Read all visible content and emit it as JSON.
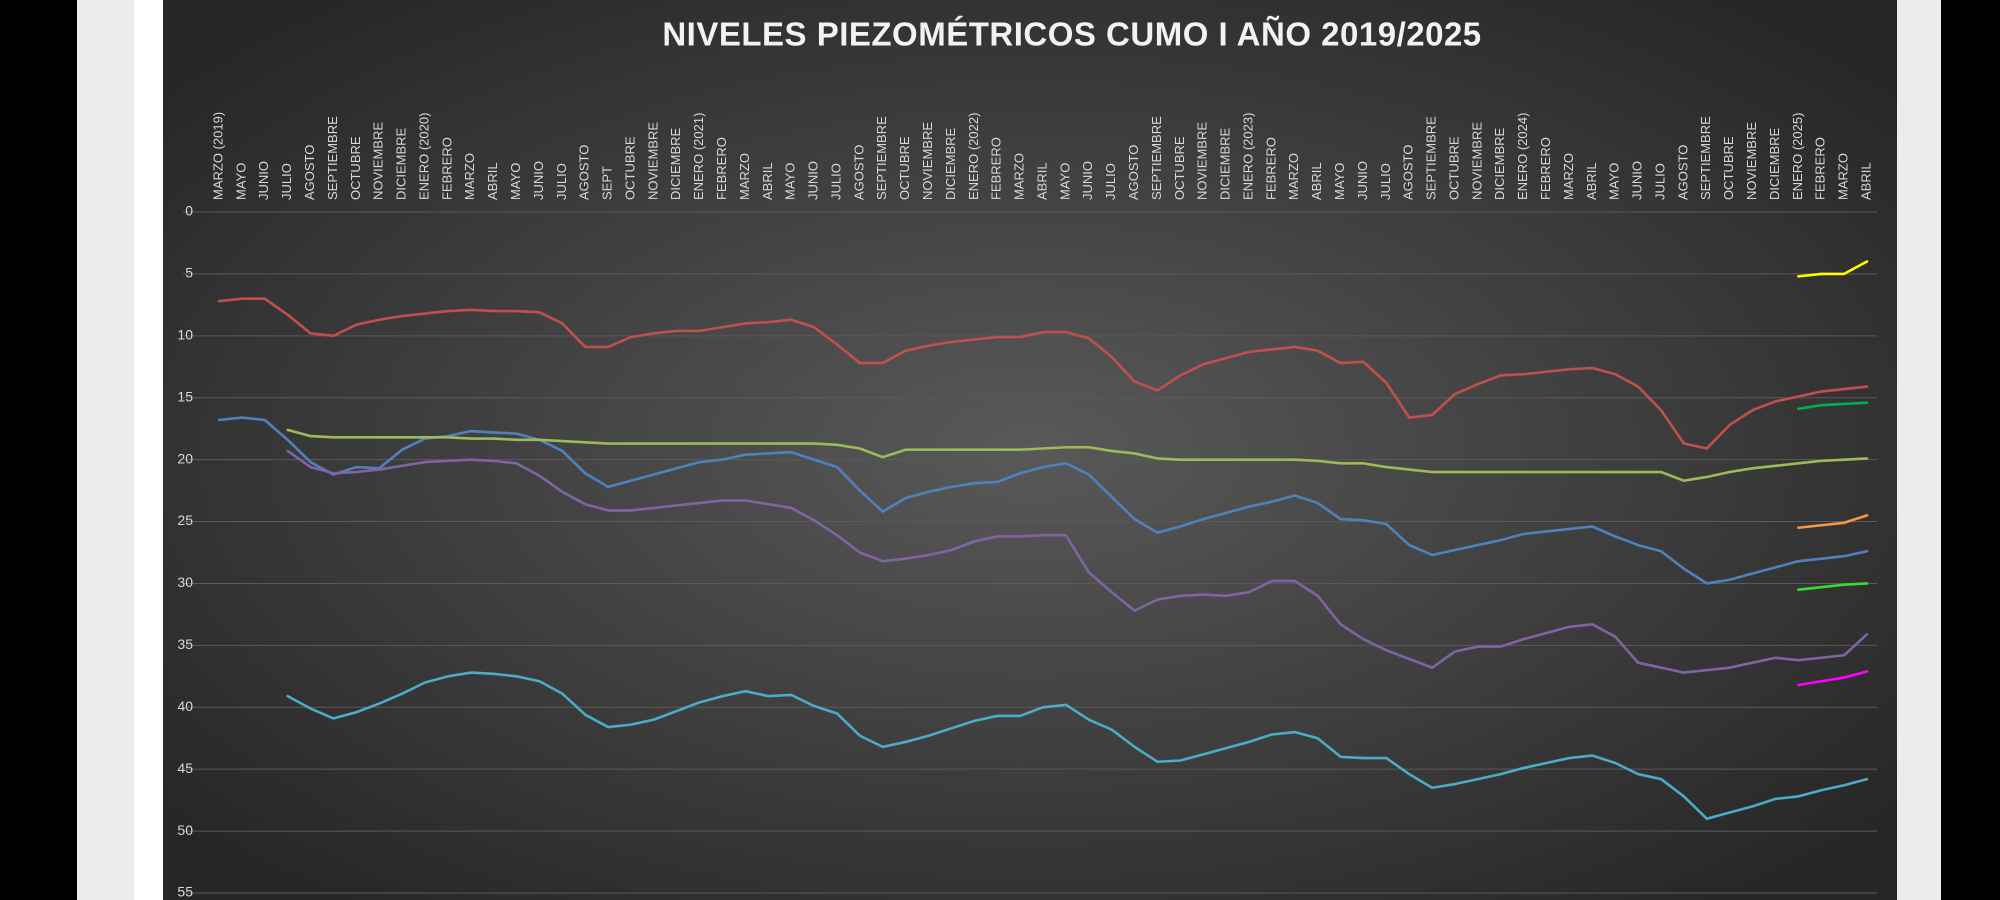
{
  "chart_data": {
    "type": "line",
    "title": "NIVELES PIEZOMÉTRICOS CUMO I AÑO 2019/2025",
    "categories": [
      "MARZO (2019)",
      "MAYO",
      "JUNIO",
      "JULIO",
      "AGOSTO",
      "SEPTIEMBRE",
      "OCTUBRE",
      "NOVIEMBRE",
      "DICIEMBRE",
      "ENERO (2020)",
      "FEBRERO",
      "MARZO",
      "ABRIL",
      "MAYO",
      "JUNIO",
      "JULIO",
      "AGOSTO",
      "SEPT",
      "OCTUBRE",
      "NOVIEMBRE",
      "DICIEMBRE",
      "ENERO (2021)",
      "FEBRERO",
      "MARZO",
      "ABRIL",
      "MAYO",
      "JUNIO",
      "JULIO",
      "AGOSTO",
      "SEPTIEMBRE",
      "OCTUBRE",
      "NOVIEMBRE",
      "DICIEMBRE",
      "ENERO (2022)",
      "FEBRERO",
      "MARZO",
      "ABRIL",
      "MAYO",
      "JUNIO",
      "JULIO",
      "AGOSTO",
      "SEPTIEMBRE",
      "OCTUBRE",
      "NOVIEMBRE",
      "DICIEMBRE",
      "ENERO (2023)",
      "FEBRERO",
      "MARZO",
      "ABRIL",
      "MAYO",
      "JUNIO",
      "JULIO",
      "AGOSTO",
      "SEPTIEMBRE",
      "OCTUBRE",
      "NOVIEMBRE",
      "DICIEMBRE",
      "ENERO (2024)",
      "FEBRERO",
      "MARZO",
      "ABRIL",
      "MAYO",
      "JUNIO",
      "JULIO",
      "AGOSTO",
      "SEPTIEMBRE",
      "OCTUBRE",
      "NOVIEMBRE",
      "DICIEMBRE",
      "ENERO (2025)",
      "FEBRERO",
      "MARZO",
      "ABRIL"
    ],
    "ylim": [
      0,
      55
    ],
    "yticks": [
      0,
      5,
      10,
      15,
      20,
      25,
      30,
      35,
      40,
      45,
      50,
      55
    ],
    "y_inverted": true,
    "grid": true,
    "series": [
      {
        "color": "#c0504d",
        "values": [
          7.2,
          7.0,
          7.0,
          8.3,
          9.8,
          10.0,
          9.1,
          8.7,
          8.4,
          8.2,
          8.0,
          7.9,
          8.0,
          8.0,
          8.1,
          9.0,
          10.9,
          10.9,
          10.1,
          9.8,
          9.6,
          9.6,
          9.3,
          9.0,
          8.9,
          8.7,
          9.3,
          10.7,
          12.2,
          12.2,
          11.2,
          10.8,
          10.5,
          10.3,
          10.1,
          10.1,
          9.7,
          9.7,
          10.2,
          11.7,
          13.7,
          14.4,
          13.2,
          12.3,
          11.8,
          11.3,
          11.1,
          10.9,
          11.2,
          12.2,
          12.1,
          13.8,
          16.6,
          16.4,
          14.7,
          13.9,
          13.2,
          13.1,
          12.9,
          12.7,
          12.6,
          13.1,
          14.1,
          16.0,
          18.7,
          19.1,
          17.2,
          16.0,
          15.3,
          14.9,
          14.5,
          14.3,
          14.1
        ]
      },
      {
        "color": "#4f81bd",
        "values": [
          16.8,
          16.6,
          16.8,
          18.4,
          20.2,
          21.2,
          20.6,
          20.7,
          19.2,
          18.3,
          18.1,
          17.7,
          17.8,
          17.9,
          18.4,
          19.3,
          21.1,
          22.2,
          21.7,
          21.2,
          20.7,
          20.2,
          20.0,
          19.6,
          19.5,
          19.4,
          20.0,
          20.6,
          22.5,
          24.2,
          23.1,
          22.6,
          22.2,
          21.9,
          21.8,
          21.1,
          20.6,
          20.3,
          21.2,
          23.0,
          24.8,
          25.9,
          25.4,
          24.8,
          24.3,
          23.8,
          23.4,
          22.9,
          23.5,
          24.8,
          24.9,
          25.2,
          26.9,
          27.7,
          27.3,
          26.9,
          26.5,
          26.0,
          25.8,
          25.6,
          25.4,
          26.2,
          26.9,
          27.4,
          28.8,
          30.0,
          29.7,
          29.2,
          28.7,
          28.2,
          28.0,
          27.8,
          27.4
        ]
      },
      {
        "color": "#9bbb59",
        "values": [
          null,
          null,
          null,
          17.6,
          18.1,
          18.2,
          18.2,
          18.2,
          18.2,
          18.2,
          18.2,
          18.3,
          18.3,
          18.4,
          18.4,
          18.5,
          18.6,
          18.7,
          18.7,
          18.7,
          18.7,
          18.7,
          18.7,
          18.7,
          18.7,
          18.7,
          18.7,
          18.8,
          19.1,
          19.8,
          19.2,
          19.2,
          19.2,
          19.2,
          19.2,
          19.2,
          19.1,
          19.0,
          19.0,
          19.3,
          19.5,
          19.9,
          20.0,
          20.0,
          20.0,
          20.0,
          20.0,
          20.0,
          20.1,
          20.3,
          20.3,
          20.6,
          20.8,
          21.0,
          21.0,
          21.0,
          21.0,
          21.0,
          21.0,
          21.0,
          21.0,
          21.0,
          21.0,
          21.0,
          21.7,
          21.4,
          21.0,
          20.7,
          20.5,
          20.3,
          20.1,
          20.0,
          19.9
        ]
      },
      {
        "color": "#8064a2",
        "values": [
          null,
          null,
          null,
          19.3,
          20.6,
          21.1,
          21.0,
          20.8,
          20.5,
          20.2,
          20.1,
          20.0,
          20.1,
          20.3,
          21.3,
          22.6,
          23.6,
          24.1,
          24.1,
          23.9,
          23.7,
          23.5,
          23.3,
          23.3,
          23.6,
          23.9,
          24.9,
          26.1,
          27.5,
          28.2,
          28.0,
          27.7,
          27.3,
          26.6,
          26.2,
          26.2,
          26.1,
          26.1,
          29.1,
          30.7,
          32.2,
          31.3,
          31.0,
          30.9,
          31.0,
          30.7,
          29.8,
          29.8,
          31.0,
          33.3,
          34.5,
          35.4,
          36.1,
          36.8,
          35.5,
          35.1,
          35.1,
          34.5,
          34.0,
          33.5,
          33.3,
          34.3,
          36.4,
          36.8,
          37.2,
          37.0,
          36.8,
          36.4,
          36.0,
          36.2,
          36.0,
          35.8,
          34.1
        ]
      },
      {
        "color": "#4bacc6",
        "values": [
          null,
          null,
          null,
          39.1,
          40.1,
          40.9,
          40.4,
          39.7,
          38.9,
          38.0,
          37.5,
          37.2,
          37.3,
          37.5,
          37.9,
          38.9,
          40.6,
          41.6,
          41.4,
          41.0,
          40.3,
          39.6,
          39.1,
          38.7,
          39.1,
          39.0,
          39.9,
          40.5,
          42.3,
          43.2,
          42.8,
          42.3,
          41.7,
          41.1,
          40.7,
          40.7,
          40.0,
          39.8,
          41.0,
          41.8,
          43.2,
          44.4,
          44.3,
          43.8,
          43.3,
          42.8,
          42.2,
          42.0,
          42.5,
          44.0,
          44.1,
          44.1,
          45.4,
          46.5,
          46.2,
          45.8,
          45.4,
          44.9,
          44.5,
          44.1,
          43.9,
          44.5,
          45.4,
          45.8,
          47.2,
          49.0,
          48.5,
          48.0,
          47.4,
          47.2,
          46.7,
          46.3,
          45.8
        ]
      },
      {
        "color": "#ffff00",
        "values": [
          null,
          null,
          null,
          null,
          null,
          null,
          null,
          null,
          null,
          null,
          null,
          null,
          null,
          null,
          null,
          null,
          null,
          null,
          null,
          null,
          null,
          null,
          null,
          null,
          null,
          null,
          null,
          null,
          null,
          null,
          null,
          null,
          null,
          null,
          null,
          null,
          null,
          null,
          null,
          null,
          null,
          null,
          null,
          null,
          null,
          null,
          null,
          null,
          null,
          null,
          null,
          null,
          null,
          null,
          null,
          null,
          null,
          null,
          null,
          null,
          null,
          null,
          null,
          null,
          null,
          null,
          null,
          null,
          null,
          5.2,
          5.0,
          5.0,
          4.0
        ]
      },
      {
        "color": "#00b050",
        "values": [
          null,
          null,
          null,
          null,
          null,
          null,
          null,
          null,
          null,
          null,
          null,
          null,
          null,
          null,
          null,
          null,
          null,
          null,
          null,
          null,
          null,
          null,
          null,
          null,
          null,
          null,
          null,
          null,
          null,
          null,
          null,
          null,
          null,
          null,
          null,
          null,
          null,
          null,
          null,
          null,
          null,
          null,
          null,
          null,
          null,
          null,
          null,
          null,
          null,
          null,
          null,
          null,
          null,
          null,
          null,
          null,
          null,
          null,
          null,
          null,
          null,
          null,
          null,
          null,
          null,
          null,
          null,
          null,
          null,
          15.9,
          15.6,
          15.5,
          15.4
        ]
      },
      {
        "color": "#f79646",
        "values": [
          null,
          null,
          null,
          null,
          null,
          null,
          null,
          null,
          null,
          null,
          null,
          null,
          null,
          null,
          null,
          null,
          null,
          null,
          null,
          null,
          null,
          null,
          null,
          null,
          null,
          null,
          null,
          null,
          null,
          null,
          null,
          null,
          null,
          null,
          null,
          null,
          null,
          null,
          null,
          null,
          null,
          null,
          null,
          null,
          null,
          null,
          null,
          null,
          null,
          null,
          null,
          null,
          null,
          null,
          null,
          null,
          null,
          null,
          null,
          null,
          null,
          null,
          null,
          null,
          null,
          null,
          null,
          null,
          null,
          25.5,
          25.3,
          25.1,
          24.5
        ]
      },
      {
        "color": "#33dd33",
        "values": [
          null,
          null,
          null,
          null,
          null,
          null,
          null,
          null,
          null,
          null,
          null,
          null,
          null,
          null,
          null,
          null,
          null,
          null,
          null,
          null,
          null,
          null,
          null,
          null,
          null,
          null,
          null,
          null,
          null,
          null,
          null,
          null,
          null,
          null,
          null,
          null,
          null,
          null,
          null,
          null,
          null,
          null,
          null,
          null,
          null,
          null,
          null,
          null,
          null,
          null,
          null,
          null,
          null,
          null,
          null,
          null,
          null,
          null,
          null,
          null,
          null,
          null,
          null,
          null,
          null,
          null,
          null,
          null,
          null,
          30.5,
          30.3,
          30.1,
          30.0
        ]
      },
      {
        "color": "#ff00ff",
        "values": [
          null,
          null,
          null,
          null,
          null,
          null,
          null,
          null,
          null,
          null,
          null,
          null,
          null,
          null,
          null,
          null,
          null,
          null,
          null,
          null,
          null,
          null,
          null,
          null,
          null,
          null,
          null,
          null,
          null,
          null,
          null,
          null,
          null,
          null,
          null,
          null,
          null,
          null,
          null,
          null,
          null,
          null,
          null,
          null,
          null,
          null,
          null,
          null,
          null,
          null,
          null,
          null,
          null,
          null,
          null,
          null,
          null,
          null,
          null,
          null,
          null,
          null,
          null,
          null,
          null,
          null,
          null,
          null,
          null,
          38.2,
          37.9,
          37.6,
          37.1
        ]
      }
    ]
  }
}
